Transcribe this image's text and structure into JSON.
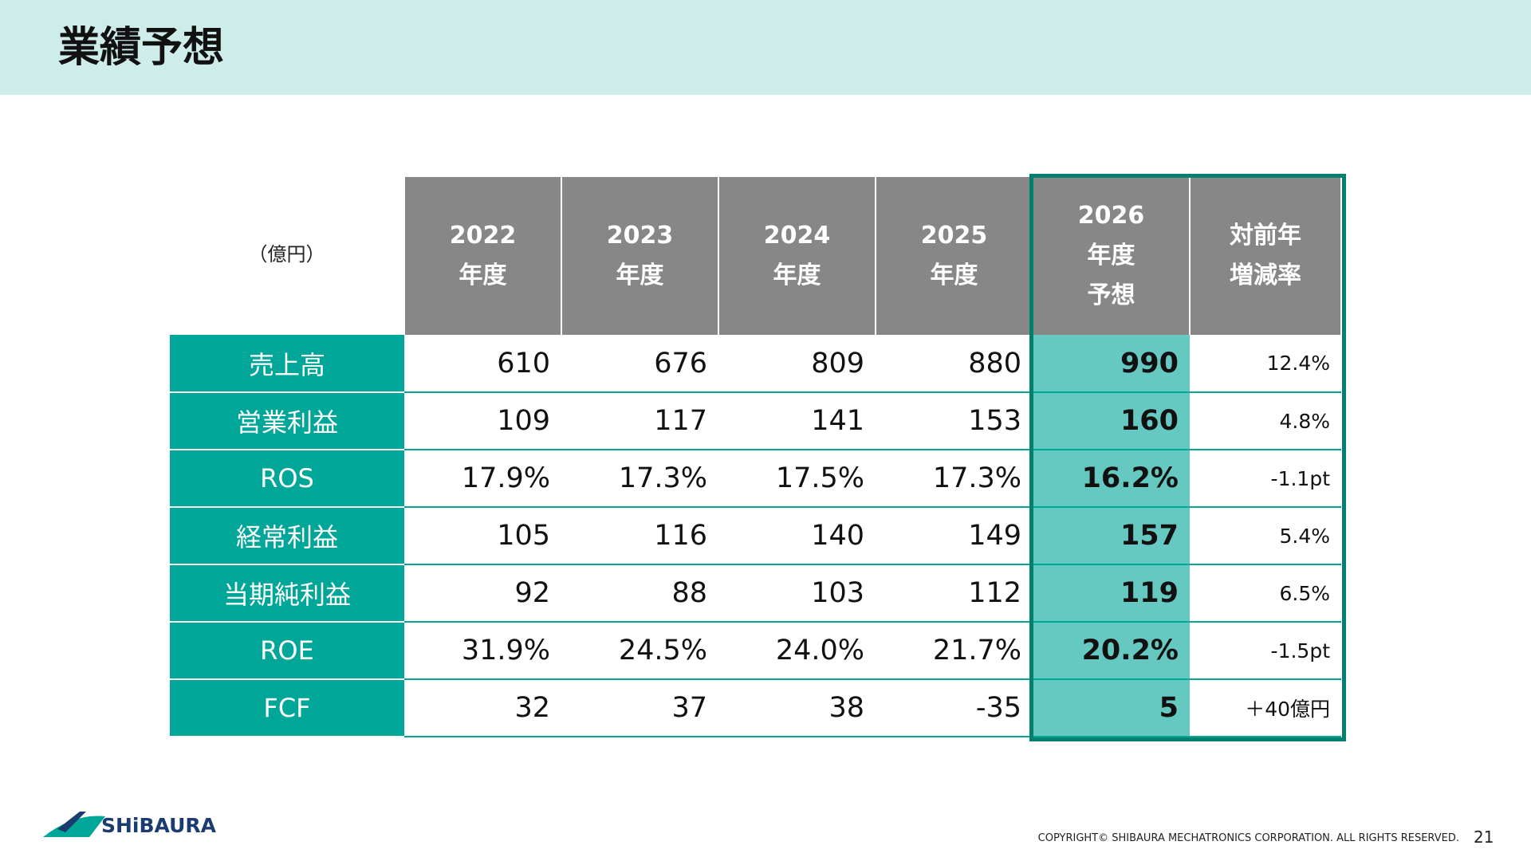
{
  "header": {
    "title": "業績予想"
  },
  "table": {
    "unit": "（億円）",
    "columns": [
      [
        "2022",
        "年度"
      ],
      [
        "2023",
        "年度"
      ],
      [
        "2024",
        "年度"
      ],
      [
        "2025",
        "年度"
      ],
      [
        "2026",
        "年度",
        "予想"
      ],
      [
        "対前年",
        "増減率"
      ]
    ],
    "rows": [
      [
        "売上高",
        "610",
        "676",
        "809",
        "880",
        "990",
        "12.4%"
      ],
      [
        "営業利益",
        "109",
        "117",
        "141",
        "153",
        "160",
        "4.8%"
      ],
      [
        "ROS",
        "17.9%",
        "17.3%",
        "17.5%",
        "17.3%",
        "16.2%",
        "-1.1pt"
      ],
      [
        "経常利益",
        "105",
        "116",
        "140",
        "149",
        "157",
        "5.4%"
      ],
      [
        "当期純利益",
        "92",
        "88",
        "103",
        "112",
        "119",
        "6.5%"
      ],
      [
        "ROE",
        "31.9%",
        "24.5%",
        "24.0%",
        "21.7%",
        "20.2%",
        "-1.5pt"
      ],
      [
        "FCF",
        "32",
        "37",
        "38",
        "-35",
        "5",
        "＋40億円"
      ]
    ]
  },
  "footer": {
    "logo": "SHiBAURA",
    "copyright": "COPYRIGHT© SHIBAURA MECHATRONICS CORPORATION. ALL RIGHTS RESERVED.",
    "page": "21"
  }
}
